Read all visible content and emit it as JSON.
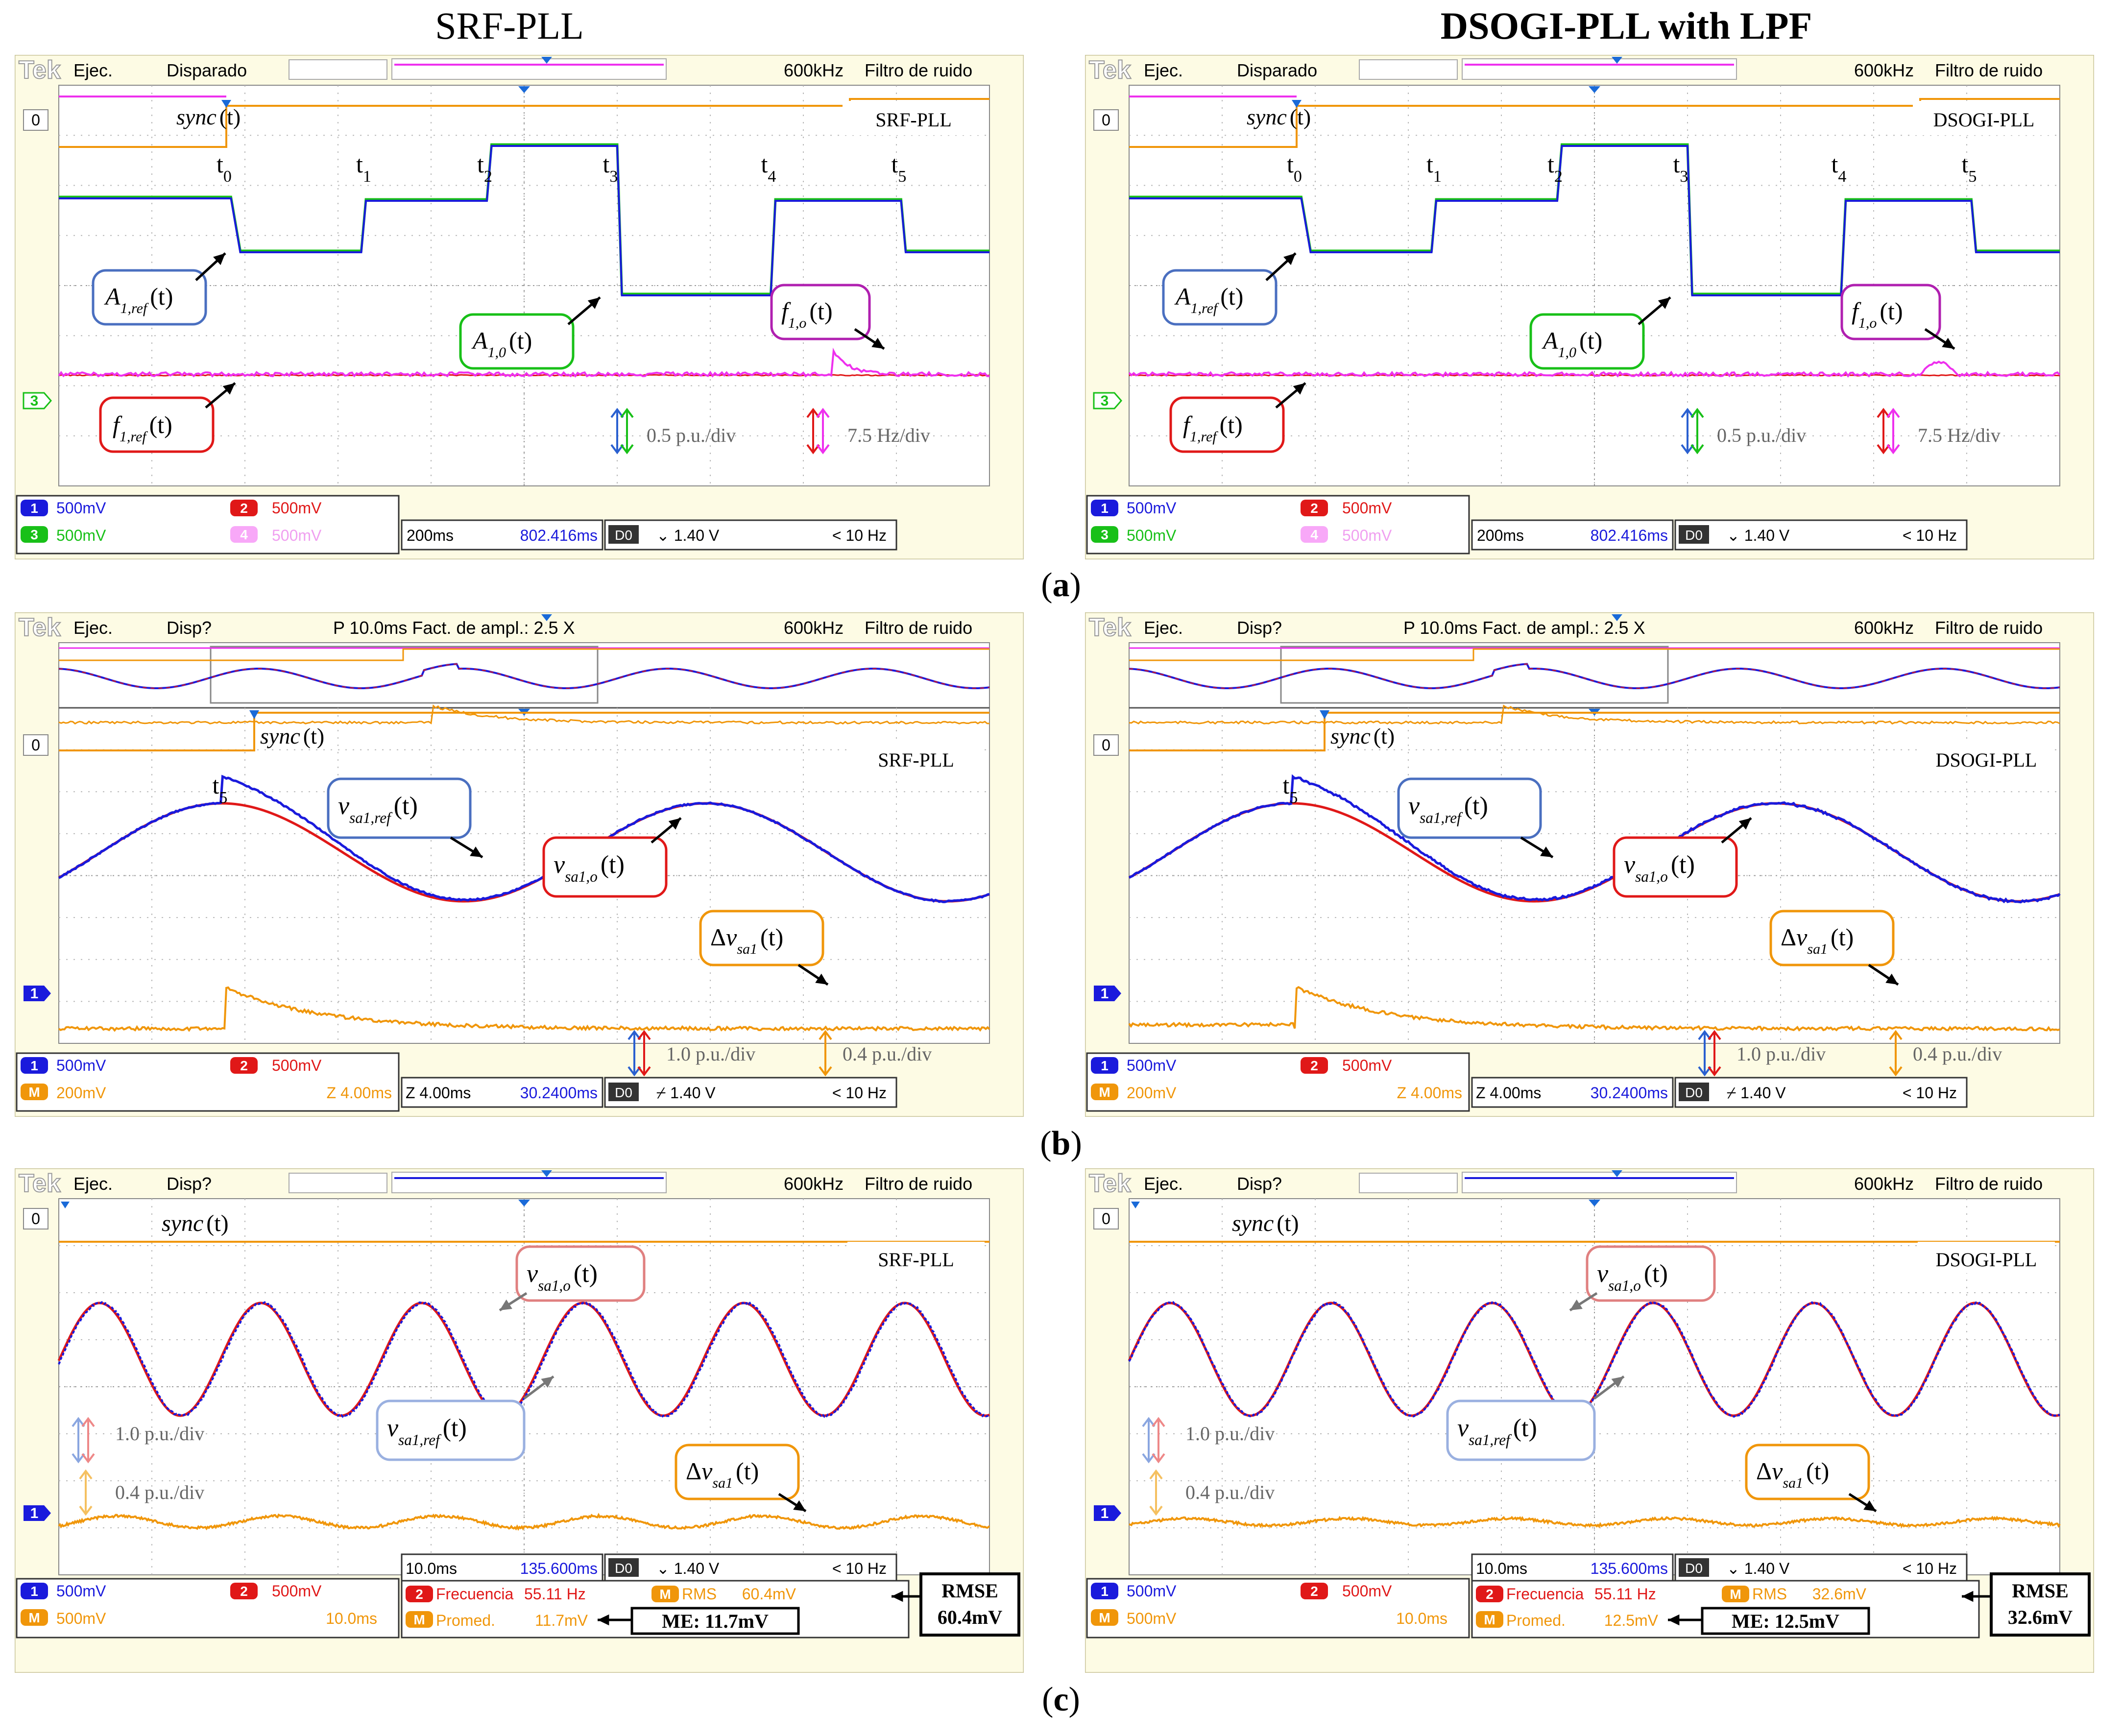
{
  "column_titles": [
    "SRF-PLL",
    "DSOGI-PLL with LPF"
  ],
  "panel_labels": [
    "(a)",
    "(b)",
    "(c)"
  ],
  "panel_label_letters": [
    "a",
    "b",
    "c"
  ],
  "colors": {
    "ch1": "#1a1adc",
    "ch2": "#e01818",
    "ch3": "#18c018",
    "ch4": "#ee30ee",
    "math": "#f0960a",
    "bezel": "#fdfbe4",
    "screen": "#ffffff",
    "grid": "#b8b8b8",
    "header": "#e9c873"
  },
  "scopes": [
    {
      "panel": "a",
      "tag": "SRF-PLL",
      "header": {
        "brand": "Tek",
        "mode": "Ejec.",
        "status": "Disparado",
        "mid": "",
        "bw": "600kHz",
        "filter": "Filtro de ruido"
      },
      "status_bar": {
        "ch1": "500mV",
        "ch2": "500mV",
        "ch3": "500mV",
        "ch4": "500mV",
        "timebase": "200ms",
        "position": "802.416ms",
        "trig_src": "D0",
        "trig_level": "1.40 V",
        "trig_freq": "< 10 Hz"
      },
      "markers": [
        "t0",
        "t1",
        "t2",
        "t3",
        "t4",
        "t5"
      ],
      "labels": {
        "sync": "sync(t)",
        "a_ref": "A1,ref(t)",
        "a_o": "A1,0(t)",
        "f_o": "f1,o(t)",
        "f_ref": "f1,ref(t)"
      },
      "scales": [
        "0.5 p.u./div",
        "7.5 Hz/div"
      ],
      "level_labels": [
        "0",
        "3"
      ]
    },
    {
      "panel": "a",
      "tag": "DSOGI-PLL",
      "header": {
        "brand": "Tek",
        "mode": "Ejec.",
        "status": "Disparado",
        "mid": "",
        "bw": "600kHz",
        "filter": "Filtro de ruido"
      },
      "status_bar": {
        "ch1": "500mV",
        "ch2": "500mV",
        "ch3": "500mV",
        "ch4": "500mV",
        "timebase": "200ms",
        "position": "802.416ms",
        "trig_src": "D0",
        "trig_level": "1.40 V",
        "trig_freq": "< 10 Hz"
      },
      "markers": [
        "t0",
        "t1",
        "t2",
        "t3",
        "t4",
        "t5"
      ],
      "labels": {
        "sync": "sync(t)",
        "a_ref": "A1,ref(t)",
        "a_o": "A1,0(t)",
        "f_o": "f1,o(t)",
        "f_ref": "f1,ref(t)"
      },
      "scales": [
        "0.5 p.u./div",
        "7.5 Hz/div"
      ],
      "level_labels": [
        "0",
        "3"
      ]
    },
    {
      "panel": "b",
      "tag": "SRF-PLL",
      "header": {
        "brand": "Tek",
        "mode": "Ejec.",
        "status": "Disp?",
        "mid": "P 10.0ms  Fact. de ampl.: 2.5 X",
        "bw": "600kHz",
        "filter": "Filtro de ruido"
      },
      "status_bar": {
        "ch1": "500mV",
        "ch2": "500mV",
        "math": "200mV",
        "zoom_math": "Z 4.00ms",
        "zoom": "Z 4.00ms",
        "position": "30.2400ms",
        "trig_src": "D0",
        "trig_level": "1.40 V",
        "trig_freq": "< 10 Hz"
      },
      "markers": [
        "t5"
      ],
      "labels": {
        "sync": "sync(t)",
        "v_ref": "vsa1,ref(t)",
        "v_o": "vsa1,o(t)",
        "dv": "Δvsa1(t)"
      },
      "scales": [
        "1.0 p.u./div",
        "0.4 p.u./div"
      ],
      "level_labels": [
        "0",
        "1"
      ]
    },
    {
      "panel": "b",
      "tag": "DSOGI-PLL",
      "header": {
        "brand": "Tek",
        "mode": "Ejec.",
        "status": "Disp?",
        "mid": "P 10.0ms  Fact. de ampl.: 2.5 X",
        "bw": "600kHz",
        "filter": "Filtro de ruido"
      },
      "status_bar": {
        "ch1": "500mV",
        "ch2": "500mV",
        "math": "200mV",
        "zoom_math": "Z 4.00ms",
        "zoom": "Z 4.00ms",
        "position": "30.2400ms",
        "trig_src": "D0",
        "trig_level": "1.40 V",
        "trig_freq": "< 10 Hz"
      },
      "markers": [
        "t5"
      ],
      "labels": {
        "sync": "sync(t)",
        "v_ref": "vsa1,ref(t)",
        "v_o": "vsa1,o(t)",
        "dv": "Δvsa1(t)"
      },
      "scales": [
        "1.0 p.u./div",
        "0.4 p.u./div"
      ],
      "level_labels": [
        "0",
        "1"
      ]
    },
    {
      "panel": "c",
      "tag": "SRF-PLL",
      "header": {
        "brand": "Tek",
        "mode": "Ejec.",
        "status": "Disp?",
        "mid": "",
        "bw": "600kHz",
        "filter": "Filtro de ruido"
      },
      "status_bar": {
        "ch1": "500mV",
        "ch2": "500mV",
        "math": "500mV",
        "math_time": "10.0ms",
        "timebase": "10.0ms",
        "position": "135.600ms",
        "trig_src": "D0",
        "trig_level": "1.40 V",
        "trig_freq": "< 10 Hz",
        "freq_label": "Frecuencia",
        "freq_value": "55.11 Hz",
        "rms_label": "RMS",
        "rms_value": "60.4mV",
        "mean_label": "Promed.",
        "mean_value": "11.7mV"
      },
      "labels": {
        "sync": "sync(t)",
        "v_o": "vsa1,o(t)",
        "v_ref": "vsa1,ref(t)",
        "dv": "Δvsa1(t)"
      },
      "scales": [
        "1.0 p.u./div",
        "0.4 p.u./div"
      ],
      "level_labels": [
        "0",
        "1"
      ],
      "metrics": {
        "rmse_title": "RMSE",
        "rmse": "60.4mV",
        "me": "ME: 11.7mV"
      }
    },
    {
      "panel": "c",
      "tag": "DSOGI-PLL",
      "header": {
        "brand": "Tek",
        "mode": "Ejec.",
        "status": "Disp?",
        "mid": "",
        "bw": "600kHz",
        "filter": "Filtro de ruido"
      },
      "status_bar": {
        "ch1": "500mV",
        "ch2": "500mV",
        "math": "500mV",
        "math_time": "10.0ms",
        "timebase": "10.0ms",
        "position": "135.600ms",
        "trig_src": "D0",
        "trig_level": "1.40 V",
        "trig_freq": "< 10 Hz",
        "freq_label": "Frecuencia",
        "freq_value": "55.11 Hz",
        "rms_label": "RMS",
        "rms_value": "32.6mV",
        "mean_label": "Promed.",
        "mean_value": "12.5mV"
      },
      "labels": {
        "sync": "sync(t)",
        "v_o": "vsa1,o(t)",
        "v_ref": "vsa1,ref(t)",
        "dv": "Δvsa1(t)"
      },
      "scales": [
        "1.0 p.u./div",
        "0.4 p.u./div"
      ],
      "level_labels": [
        "0",
        "1"
      ],
      "metrics": {
        "rmse_title": "RMSE",
        "rmse": "32.6mV",
        "me": "ME: 12.5mV"
      }
    }
  ],
  "chart_data": [
    {
      "type": "line",
      "title": "SRF-PLL",
      "panel": "a",
      "x_unit": "div",
      "x_range": [
        0,
        10
      ],
      "series": [
        {
          "name": "A1,ref(t)",
          "step_times": [
            0,
            0.8,
            1.3,
            2.7,
            3.7,
            4.7,
            5.1,
            6.4,
            6.9,
            8.4,
            8.9,
            10
          ],
          "levels": [
            4.85,
            4.85,
            4.42,
            4.42,
            5.33,
            5.33,
            3.86,
            3.86,
            5.33,
            5.33,
            4.85,
            4.85
          ]
        },
        {
          "name": "f1,ref(t)",
          "values": [
            2.8,
            2.8
          ]
        },
        {
          "name": "f1,o(t)",
          "values": [
            2.8,
            2.8,
            2.95,
            2.8
          ]
        }
      ]
    },
    {
      "type": "line",
      "title": "DSOGI-PLL",
      "panel": "a",
      "x_unit": "div",
      "x_range": [
        0,
        10
      ],
      "series": [
        {
          "name": "A1,ref(t)",
          "step_times": [
            0,
            0.8,
            1.3,
            2.7,
            3.7,
            4.7,
            5.1,
            6.4,
            6.9,
            8.4,
            8.9,
            10
          ],
          "levels": [
            4.85,
            4.85,
            4.42,
            4.42,
            5.33,
            5.33,
            3.86,
            3.86,
            5.33,
            5.33,
            4.85,
            4.85
          ]
        },
        {
          "name": "f1,ref(t)",
          "values": [
            2.8,
            2.8
          ]
        },
        {
          "name": "f1,o(t)",
          "values": [
            2.8,
            2.8,
            2.95,
            2.8
          ]
        }
      ]
    },
    {
      "type": "line",
      "title": "SRF-PLL",
      "panel": "b",
      "x_unit": "div",
      "x_range": [
        0,
        10
      ],
      "series": [
        {
          "name": "vsa1,ref(t)",
          "period_div": 5.2
        },
        {
          "name": "vsa1,o(t)",
          "period_div": 5.2
        },
        {
          "name": "Δvsa1(t)",
          "step_at_div": 1.1,
          "peak_pu": 0.4
        }
      ]
    },
    {
      "type": "line",
      "title": "DSOGI-PLL",
      "panel": "b",
      "x_unit": "div",
      "x_range": [
        0,
        10
      ],
      "series": [
        {
          "name": "vsa1,ref(t)",
          "period_div": 5.2
        },
        {
          "name": "vsa1,o(t)",
          "period_div": 5.2
        },
        {
          "name": "Δvsa1(t)",
          "step_at_div": 1.1,
          "peak_pu": 0.4
        }
      ]
    },
    {
      "type": "line",
      "title": "SRF-PLL",
      "panel": "c",
      "x_unit": "div",
      "x_range": [
        0,
        10
      ],
      "series": [
        {
          "name": "vsa1,ref(t)",
          "period_div": 1.73
        },
        {
          "name": "vsa1,o(t)",
          "period_div": 1.73
        },
        {
          "name": "Δvsa1(t)",
          "rms_mV": 60.4,
          "mean_mV": 11.7
        }
      ]
    },
    {
      "type": "line",
      "title": "DSOGI-PLL",
      "panel": "c",
      "x_unit": "div",
      "x_range": [
        0,
        10
      ],
      "series": [
        {
          "name": "vsa1,ref(t)",
          "period_div": 1.73
        },
        {
          "name": "vsa1,o(t)",
          "period_div": 1.73
        },
        {
          "name": "Δvsa1(t)",
          "rms_mV": 32.6,
          "mean_mV": 12.5
        }
      ]
    }
  ]
}
